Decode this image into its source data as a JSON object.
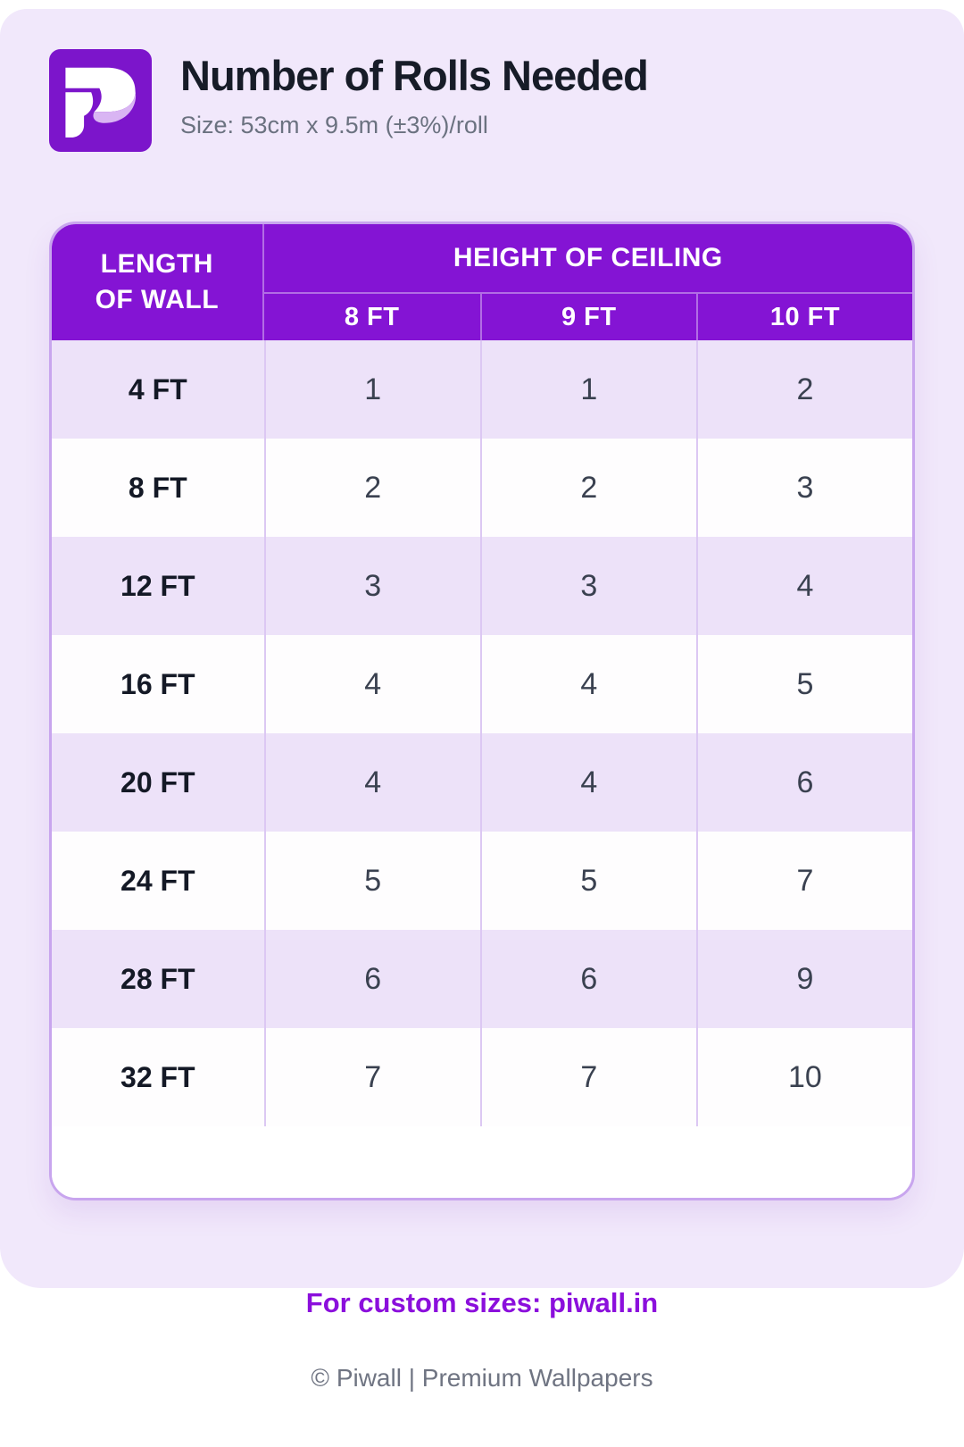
{
  "header": {
    "title": "Number of Rolls Needed",
    "subtitle": "Size: 53cm x 9.5m (±3%)/roll",
    "logo": "Piwall"
  },
  "table": {
    "corner_header": "LENGTH\nOF WALL",
    "group_header": "HEIGHT OF CEILING",
    "cols": [
      "8 FT",
      "9 FT",
      "10 FT"
    ],
    "rows": [
      {
        "label": "4 FT",
        "values": [
          "1",
          "1",
          "2"
        ]
      },
      {
        "label": "8 FT",
        "values": [
          "2",
          "2",
          "3"
        ]
      },
      {
        "label": "12 FT",
        "values": [
          "3",
          "3",
          "4"
        ]
      },
      {
        "label": "16 FT",
        "values": [
          "4",
          "4",
          "5"
        ]
      },
      {
        "label": "20 FT",
        "values": [
          "4",
          "4",
          "6"
        ]
      },
      {
        "label": "24 FT",
        "values": [
          "5",
          "5",
          "7"
        ]
      },
      {
        "label": "28 FT",
        "values": [
          "6",
          "6",
          "9"
        ]
      },
      {
        "label": "32 FT",
        "values": [
          "7",
          "7",
          "10"
        ]
      }
    ]
  },
  "footer": {
    "custom_sizes": "For custom sizes: piwall.in",
    "copyright": "© Piwall | Premium Wallpapers"
  },
  "colors": {
    "page_background": "#f1e8fb",
    "header_purple": "#8414d4",
    "logo_purple": "#7c15cb",
    "table_border": "#c8a5ee",
    "row_lavender": "#ede2f9",
    "row_white": "#fefdfe",
    "link_purple": "#8b0fdc",
    "text_dark": "#171c28",
    "text_gray": "#6b7280"
  },
  "chart_data": {
    "type": "table",
    "title": "Number of Rolls Needed",
    "subtitle": "Size: 53cm x 9.5m (±3%)/roll",
    "row_header": "LENGTH OF WALL",
    "column_group_header": "HEIGHT OF CEILING",
    "columns": [
      "8 FT",
      "9 FT",
      "10 FT"
    ],
    "row_labels": [
      "4 FT",
      "8 FT",
      "12 FT",
      "16 FT",
      "20 FT",
      "24 FT",
      "28 FT",
      "32 FT"
    ],
    "values": [
      [
        1,
        1,
        2
      ],
      [
        2,
        2,
        3
      ],
      [
        3,
        3,
        4
      ],
      [
        4,
        4,
        5
      ],
      [
        4,
        4,
        6
      ],
      [
        5,
        5,
        7
      ],
      [
        6,
        6,
        9
      ],
      [
        7,
        7,
        10
      ]
    ]
  }
}
